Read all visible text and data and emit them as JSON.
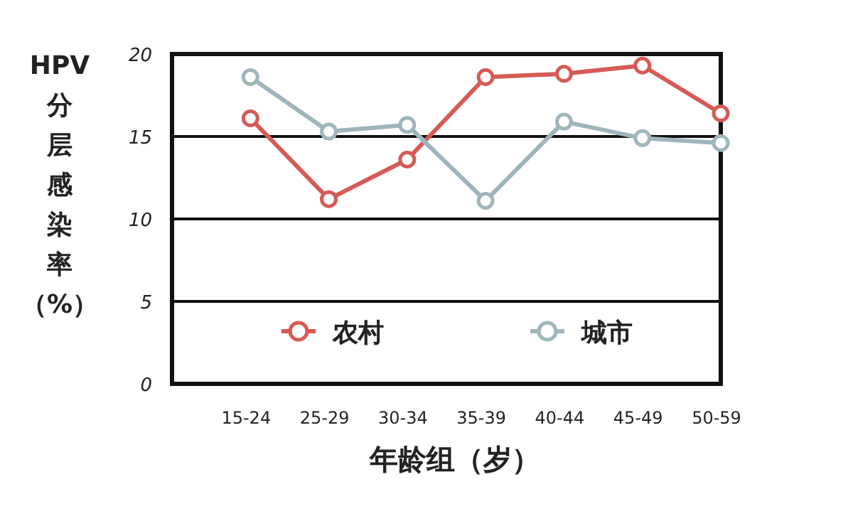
{
  "chart_data": {
    "type": "line",
    "xlabel": "年龄组（岁）",
    "ylabel": "HPV分层感染率（%）",
    "categories": [
      "15-24",
      "25-29",
      "30-34",
      "35-39",
      "40-44",
      "45-49",
      "50-59"
    ],
    "series": [
      {
        "name": "农村",
        "color": "#d65a55",
        "values": [
          16.1,
          11.2,
          13.6,
          18.6,
          18.8,
          19.3,
          16.4
        ]
      },
      {
        "name": "城市",
        "color": "#9fb5bb",
        "values": [
          18.6,
          15.3,
          15.7,
          11.1,
          15.9,
          14.9,
          14.6
        ]
      }
    ],
    "ylim": [
      0,
      20
    ],
    "yticks": [
      0,
      5,
      10,
      15,
      20
    ],
    "grid": "y",
    "legend": "bottom",
    "marker": "circle",
    "line_style": "solid"
  }
}
